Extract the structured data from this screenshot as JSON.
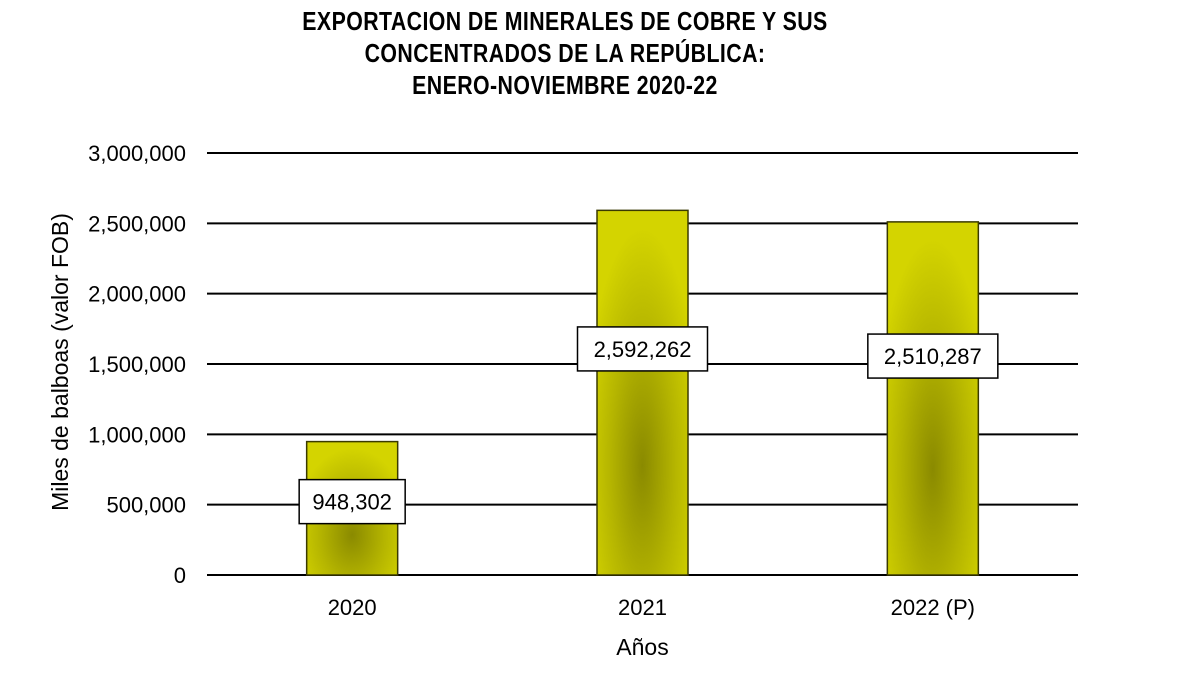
{
  "title_lines": [
    "EXPORTACION DE MINERALES DE COBRE Y SUS",
    "CONCENTRADOS  DE LA REPÚBLICA:",
    "ENERO-NOVIEMBRE  2020-22"
  ],
  "chart_data": {
    "type": "bar",
    "categories": [
      "2020",
      "2021",
      "2022 (P)"
    ],
    "values": [
      948302,
      2592262,
      2510287
    ],
    "data_labels": [
      "948,302",
      "2,592,262",
      "2,510,287"
    ],
    "xlabel": "Años",
    "ylabel": "Miles de balboas  (valor FOB)",
    "ylim": [
      0,
      3000000
    ],
    "yticks": [
      0,
      500000,
      1000000,
      1500000,
      2000000,
      2500000,
      3000000
    ],
    "ytick_labels": [
      "0",
      "500,000",
      "1,000,000",
      "1,500,000",
      "2,000,000",
      "2,500,000",
      "3,000,000"
    ],
    "grid": true,
    "bar_color": "#cfcf00",
    "bar_shade_color": "#8a8a00",
    "legend": "none"
  }
}
